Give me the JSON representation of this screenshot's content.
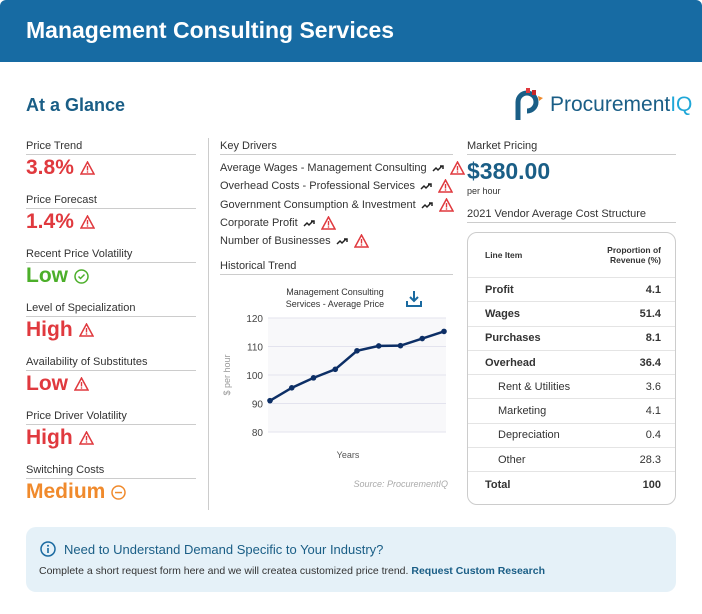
{
  "header": {
    "title": "Management Consulting Services"
  },
  "section_title": "At a Glance",
  "logo": {
    "text": "Procurement",
    "suffix": "IQ"
  },
  "metrics": [
    {
      "label": "Price Trend",
      "value": "3.8%",
      "status": "warning",
      "color": "#e0393e"
    },
    {
      "label": "Price Forecast",
      "value": "1.4%",
      "status": "warning",
      "color": "#e0393e"
    },
    {
      "label": "Recent Price Volatility",
      "value": "Low",
      "status": "ok",
      "color": "#4caf2a"
    },
    {
      "label": "Level of Specialization",
      "value": "High",
      "status": "warning",
      "color": "#e0393e"
    },
    {
      "label": "Availability of Substitutes",
      "value": "Low",
      "status": "warning",
      "color": "#e0393e"
    },
    {
      "label": "Price Driver Volatility",
      "value": "High",
      "status": "warning",
      "color": "#e0393e"
    },
    {
      "label": "Switching Costs",
      "value": "Medium",
      "status": "neutral",
      "color": "#f08a2c"
    }
  ],
  "key_drivers": {
    "title": "Key Drivers",
    "items": [
      "Average Wages - Management Consulting",
      "Overhead Costs - Professional Services",
      "Government Consumption & Investment",
      "Corporate Profit",
      "Number of Businesses"
    ]
  },
  "historical": {
    "title": "Historical Trend"
  },
  "chart_data": {
    "type": "line",
    "title": "Management Consulting Services - Average Price",
    "title_lines": [
      "Management Consulting",
      "Services - Average Price"
    ],
    "xlabel": "Years",
    "ylabel": "$ per hour",
    "ylim": [
      80,
      120
    ],
    "yticks": [
      80,
      90,
      100,
      110,
      120
    ],
    "grid": true,
    "values": [
      91,
      95.5,
      99,
      102,
      108.5,
      110.2,
      110.3,
      112.8,
      115.3
    ],
    "color": "#0d2f66",
    "source": "Source: ProcurementIQ"
  },
  "market_pricing": {
    "label": "Market Pricing",
    "price": "$380.00",
    "unit": "per hour"
  },
  "cost_structure": {
    "title": "2021 Vendor Average Cost Structure",
    "headers": [
      "Line Item",
      "Proportion of Revenue (%)"
    ],
    "rows": [
      {
        "item": "Profit",
        "value": "4.1",
        "type": "b"
      },
      {
        "item": "Wages",
        "value": "51.4",
        "type": "b"
      },
      {
        "item": "Purchases",
        "value": "8.1",
        "type": "b"
      },
      {
        "item": "Overhead",
        "value": "36.4",
        "type": "b"
      },
      {
        "item": "Rent & Utilities",
        "value": "3.6",
        "type": "sub"
      },
      {
        "item": "Marketing",
        "value": "4.1",
        "type": "sub"
      },
      {
        "item": "Depreciation",
        "value": "0.4",
        "type": "sub"
      },
      {
        "item": "Other",
        "value": "28.3",
        "type": "sub"
      },
      {
        "item": "Total",
        "value": "100",
        "type": "b"
      }
    ]
  },
  "banner": {
    "title": "Need to Understand Demand Specific to Your Industry?",
    "text": "Complete a short request form here and we will createa customized price trend.",
    "link": "Request Custom Research"
  }
}
